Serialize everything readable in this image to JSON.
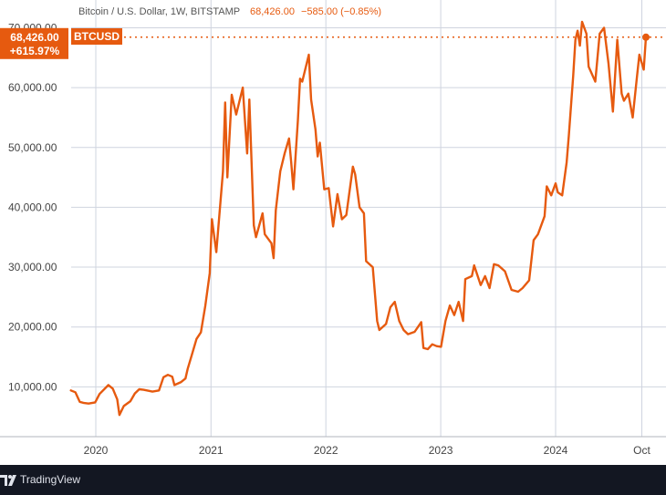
{
  "header": {
    "title": "Bitcoin / U.S. Dollar, 1W, BITSTAMP",
    "last": "68,426.00",
    "change": "−585.00 (−0.85%)"
  },
  "badges": {
    "price": "68,426.00",
    "pct": "+615.97%",
    "symbol": "BTCUSD"
  },
  "colors": {
    "line": "#e65a0f",
    "badge_bg": "#e65a0f",
    "badge_text": "#ffffff",
    "grid": "#cfd4df",
    "footer_bg": "#131722"
  },
  "footer": {
    "brand": "TradingView"
  },
  "chart_data": {
    "type": "line",
    "title": "Bitcoin / U.S. Dollar, 1W, BITSTAMP",
    "xlabel": "",
    "ylabel": "",
    "ylim": [
      0,
      73000
    ],
    "y_ticks": [
      10000,
      20000,
      30000,
      40000,
      50000,
      60000,
      70000
    ],
    "y_tick_labels": [
      "10,000.00",
      "20,000.00",
      "30,000.00",
      "40,000.00",
      "50,000.00",
      "60,000.00",
      "70,000.00"
    ],
    "x_ticks": [
      {
        "date": "2020-01-01",
        "label": "2020"
      },
      {
        "date": "2021-01-01",
        "label": "2021"
      },
      {
        "date": "2022-01-01",
        "label": "2022"
      },
      {
        "date": "2023-01-01",
        "label": "2023"
      },
      {
        "date": "2024-01-01",
        "label": "2024"
      },
      {
        "date": "2024-10-01",
        "label": "Oct"
      }
    ],
    "grid": true,
    "legend": "none",
    "last_value": 68426,
    "series": [
      {
        "name": "BTCUSD",
        "points": [
          [
            "2019-10-14",
            9400
          ],
          [
            "2019-10-28",
            9100
          ],
          [
            "2019-11-11",
            7500
          ],
          [
            "2019-11-25",
            7300
          ],
          [
            "2019-12-09",
            7200
          ],
          [
            "2019-12-30",
            7400
          ],
          [
            "2020-01-13",
            8800
          ],
          [
            "2020-02-10",
            10300
          ],
          [
            "2020-02-24",
            9700
          ],
          [
            "2020-03-09",
            7900
          ],
          [
            "2020-03-16",
            5300
          ],
          [
            "2020-03-30",
            6800
          ],
          [
            "2020-04-20",
            7600
          ],
          [
            "2020-05-04",
            8900
          ],
          [
            "2020-05-18",
            9600
          ],
          [
            "2020-06-01",
            9500
          ],
          [
            "2020-06-29",
            9200
          ],
          [
            "2020-07-20",
            9400
          ],
          [
            "2020-08-03",
            11600
          ],
          [
            "2020-08-17",
            12000
          ],
          [
            "2020-08-31",
            11700
          ],
          [
            "2020-09-07",
            10300
          ],
          [
            "2020-09-28",
            10800
          ],
          [
            "2020-10-12",
            11400
          ],
          [
            "2020-10-19",
            13000
          ],
          [
            "2020-11-02",
            15500
          ],
          [
            "2020-11-16",
            18000
          ],
          [
            "2020-11-30",
            19100
          ],
          [
            "2020-12-14",
            23500
          ],
          [
            "2020-12-28",
            29000
          ],
          [
            "2021-01-04",
            38000
          ],
          [
            "2021-01-18",
            32500
          ],
          [
            "2021-02-08",
            46000
          ],
          [
            "2021-02-15",
            57500
          ],
          [
            "2021-02-22",
            45000
          ],
          [
            "2021-03-08",
            58800
          ],
          [
            "2021-03-22",
            55500
          ],
          [
            "2021-04-12",
            60000
          ],
          [
            "2021-04-26",
            49000
          ],
          [
            "2021-05-03",
            58000
          ],
          [
            "2021-05-17",
            37000
          ],
          [
            "2021-05-24",
            35000
          ],
          [
            "2021-06-14",
            39000
          ],
          [
            "2021-06-21",
            35500
          ],
          [
            "2021-07-12",
            34000
          ],
          [
            "2021-07-19",
            31500
          ],
          [
            "2021-07-26",
            39500
          ],
          [
            "2021-08-09",
            46000
          ],
          [
            "2021-08-23",
            49000
          ],
          [
            "2021-09-06",
            51500
          ],
          [
            "2021-09-13",
            47500
          ],
          [
            "2021-09-20",
            43000
          ],
          [
            "2021-10-04",
            54500
          ],
          [
            "2021-10-11",
            61500
          ],
          [
            "2021-10-18",
            61000
          ],
          [
            "2021-11-08",
            65500
          ],
          [
            "2021-11-15",
            58000
          ],
          [
            "2021-11-29",
            53000
          ],
          [
            "2021-12-06",
            48500
          ],
          [
            "2021-12-13",
            50800
          ],
          [
            "2021-12-27",
            43000
          ],
          [
            "2022-01-10",
            43200
          ],
          [
            "2022-01-24",
            36800
          ],
          [
            "2022-02-07",
            42200
          ],
          [
            "2022-02-21",
            38000
          ],
          [
            "2022-03-07",
            38700
          ],
          [
            "2022-03-28",
            46800
          ],
          [
            "2022-04-04",
            45500
          ],
          [
            "2022-04-18",
            40000
          ],
          [
            "2022-05-02",
            39000
          ],
          [
            "2022-05-09",
            31000
          ],
          [
            "2022-05-30",
            30000
          ],
          [
            "2022-06-13",
            21000
          ],
          [
            "2022-06-20",
            19500
          ],
          [
            "2022-07-11",
            20500
          ],
          [
            "2022-07-25",
            23300
          ],
          [
            "2022-08-08",
            24200
          ],
          [
            "2022-08-22",
            21000
          ],
          [
            "2022-09-05",
            19500
          ],
          [
            "2022-09-19",
            18800
          ],
          [
            "2022-10-10",
            19200
          ],
          [
            "2022-10-31",
            20800
          ],
          [
            "2022-11-07",
            16500
          ],
          [
            "2022-11-21",
            16300
          ],
          [
            "2022-12-05",
            17100
          ],
          [
            "2022-12-19",
            16800
          ],
          [
            "2023-01-02",
            16700
          ],
          [
            "2023-01-16",
            21000
          ],
          [
            "2023-01-30",
            23600
          ],
          [
            "2023-02-13",
            22000
          ],
          [
            "2023-02-27",
            24200
          ],
          [
            "2023-03-13",
            21000
          ],
          [
            "2023-03-20",
            28000
          ],
          [
            "2023-04-10",
            28500
          ],
          [
            "2023-04-17",
            30300
          ],
          [
            "2023-05-08",
            27000
          ],
          [
            "2023-05-22",
            28500
          ],
          [
            "2023-06-05",
            26500
          ],
          [
            "2023-06-19",
            30500
          ],
          [
            "2023-07-03",
            30300
          ],
          [
            "2023-07-24",
            29300
          ],
          [
            "2023-08-14",
            26200
          ],
          [
            "2023-09-04",
            25900
          ],
          [
            "2023-09-18",
            26500
          ],
          [
            "2023-10-09",
            27800
          ],
          [
            "2023-10-23",
            34500
          ],
          [
            "2023-11-06",
            35500
          ],
          [
            "2023-11-27",
            38500
          ],
          [
            "2023-12-04",
            43500
          ],
          [
            "2023-12-18",
            42000
          ],
          [
            "2024-01-01",
            44000
          ],
          [
            "2024-01-08",
            42500
          ],
          [
            "2024-01-22",
            42000
          ],
          [
            "2024-02-05",
            47500
          ],
          [
            "2024-02-12",
            52000
          ],
          [
            "2024-02-26",
            62000
          ],
          [
            "2024-03-04",
            68000
          ],
          [
            "2024-03-11",
            69500
          ],
          [
            "2024-03-18",
            67000
          ],
          [
            "2024-03-25",
            71000
          ],
          [
            "2024-04-08",
            69000
          ],
          [
            "2024-04-15",
            63500
          ],
          [
            "2024-05-06",
            61000
          ],
          [
            "2024-05-20",
            69000
          ],
          [
            "2024-06-03",
            70000
          ],
          [
            "2024-06-17",
            64000
          ],
          [
            "2024-07-01",
            56000
          ],
          [
            "2024-07-15",
            68000
          ],
          [
            "2024-07-29",
            59000
          ],
          [
            "2024-08-05",
            57800
          ],
          [
            "2024-08-19",
            59000
          ],
          [
            "2024-09-02",
            55000
          ],
          [
            "2024-09-16",
            62000
          ],
          [
            "2024-09-23",
            65500
          ],
          [
            "2024-10-07",
            63000
          ],
          [
            "2024-10-14",
            68426
          ]
        ]
      }
    ]
  }
}
